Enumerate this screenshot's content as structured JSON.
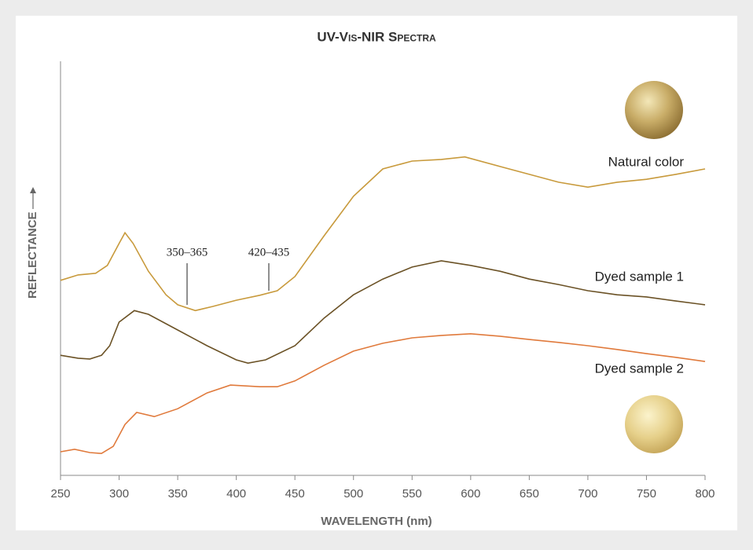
{
  "chart_data": {
    "type": "line",
    "title": "UV-Vis-NIR Spectra",
    "x_label": "WAVELENGTH (nm)",
    "y_label": "REFLECTANCE",
    "annotations": [
      "350–365",
      "420–435"
    ],
    "xlim": [
      250,
      800
    ],
    "xticks": [
      250,
      300,
      350,
      400,
      450,
      500,
      550,
      600,
      650,
      700,
      750,
      800
    ],
    "ylim": [
      0,
      100
    ],
    "grid": false,
    "series": [
      {
        "name": "Natural color",
        "color": "#c89a3c",
        "x": [
          250,
          265,
          280,
          290,
          300,
          305,
          312,
          325,
          340,
          350,
          365,
          380,
          400,
          420,
          435,
          450,
          475,
          500,
          525,
          550,
          575,
          595,
          625,
          650,
          675,
          700,
          725,
          750,
          775,
          800
        ],
        "values": [
          47.1,
          48.4,
          48.8,
          50.7,
          56.0,
          58.6,
          56.0,
          49.3,
          43.6,
          41.2,
          39.8,
          40.8,
          42.3,
          43.5,
          44.6,
          48.0,
          57.9,
          67.4,
          74.0,
          75.9,
          76.3,
          76.9,
          74.6,
          72.7,
          70.8,
          69.6,
          70.8,
          71.5,
          72.7,
          74.0
        ]
      },
      {
        "name": "Dyed sample 1",
        "color": "#6b5226",
        "x": [
          250,
          265,
          275,
          285,
          292,
          300,
          313,
          325,
          350,
          375,
          400,
          410,
          425,
          450,
          475,
          500,
          525,
          550,
          575,
          600,
          625,
          650,
          675,
          700,
          725,
          750,
          775,
          800
        ],
        "values": [
          29.0,
          28.3,
          28.1,
          29.0,
          31.3,
          37.0,
          39.8,
          38.9,
          35.1,
          31.3,
          27.9,
          27.1,
          27.9,
          31.3,
          38.0,
          43.6,
          47.4,
          50.3,
          51.8,
          50.7,
          49.3,
          47.4,
          46.1,
          44.6,
          43.6,
          43.1,
          42.1,
          41.2
        ]
      },
      {
        "name": "Dyed sample 2",
        "color": "#e07a3c",
        "x": [
          250,
          262,
          275,
          285,
          295,
          305,
          315,
          330,
          350,
          375,
          395,
          420,
          435,
          450,
          475,
          500,
          525,
          550,
          575,
          600,
          625,
          650,
          675,
          700,
          725,
          750,
          775,
          800
        ],
        "values": [
          5.7,
          6.3,
          5.5,
          5.3,
          7.0,
          12.3,
          15.2,
          14.2,
          16.1,
          19.9,
          21.8,
          21.4,
          21.4,
          22.8,
          26.6,
          30.0,
          31.9,
          33.2,
          33.8,
          34.2,
          33.6,
          32.8,
          32.1,
          31.3,
          30.4,
          29.4,
          28.5,
          27.5
        ]
      }
    ]
  }
}
